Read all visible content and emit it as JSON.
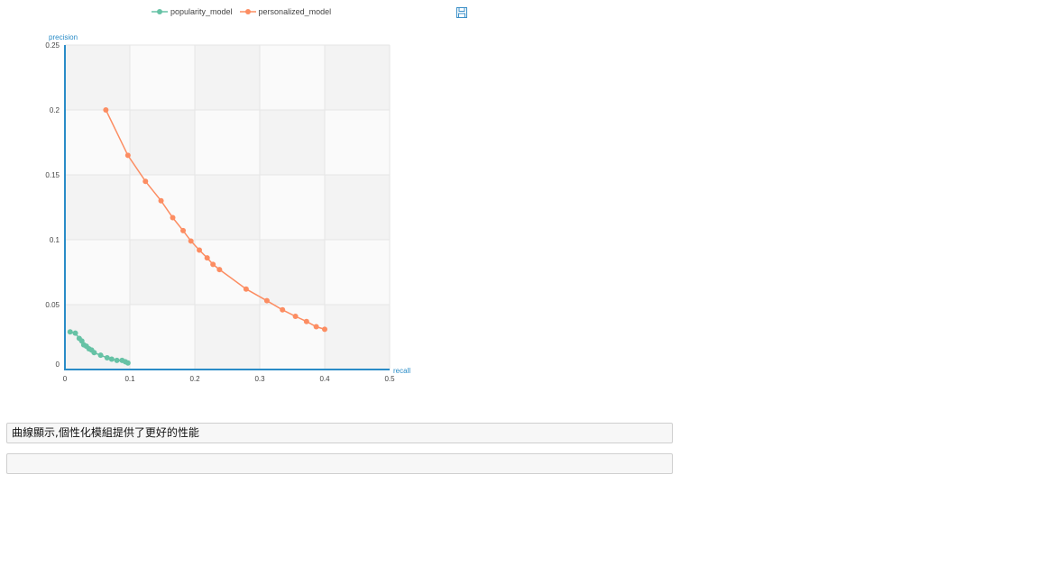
{
  "chart_data": {
    "type": "line",
    "xlabel": "recall",
    "ylabel": "precision",
    "xlim": [
      0,
      0.5
    ],
    "ylim": [
      0,
      0.25
    ],
    "xticks": [
      "0",
      "0.1",
      "0.2",
      "0.3",
      "0.4",
      "0.5"
    ],
    "yticks": [
      "0",
      "0.05",
      "0.1",
      "0.15",
      "0.2",
      "0.25"
    ],
    "legend_position": "top",
    "series": [
      {
        "name": "popularity_model",
        "color": "#66c2a5",
        "points": [
          [
            0.008,
            0.029
          ],
          [
            0.016,
            0.028
          ],
          [
            0.022,
            0.024
          ],
          [
            0.026,
            0.022
          ],
          [
            0.029,
            0.019
          ],
          [
            0.033,
            0.018
          ],
          [
            0.037,
            0.016
          ],
          [
            0.041,
            0.015
          ],
          [
            0.045,
            0.013
          ],
          [
            0.055,
            0.011
          ],
          [
            0.065,
            0.009
          ],
          [
            0.072,
            0.008
          ],
          [
            0.08,
            0.007
          ],
          [
            0.088,
            0.007
          ],
          [
            0.093,
            0.006
          ],
          [
            0.097,
            0.005
          ]
        ]
      },
      {
        "name": "personalized_model",
        "color": "#fc8d62",
        "points": [
          [
            0.063,
            0.2
          ],
          [
            0.097,
            0.165
          ],
          [
            0.124,
            0.145
          ],
          [
            0.148,
            0.13
          ],
          [
            0.166,
            0.117
          ],
          [
            0.182,
            0.107
          ],
          [
            0.194,
            0.099
          ],
          [
            0.207,
            0.092
          ],
          [
            0.219,
            0.086
          ],
          [
            0.228,
            0.081
          ],
          [
            0.238,
            0.077
          ],
          [
            0.279,
            0.062
          ],
          [
            0.311,
            0.053
          ],
          [
            0.335,
            0.046
          ],
          [
            0.355,
            0.041
          ],
          [
            0.372,
            0.037
          ],
          [
            0.387,
            0.033
          ],
          [
            0.4,
            0.031
          ]
        ]
      }
    ]
  },
  "toolbar": {
    "save_icon": "save-icon"
  },
  "outputs": {
    "line1": "曲線顯示,個性化模組提供了更好的性能",
    "line2": ""
  }
}
